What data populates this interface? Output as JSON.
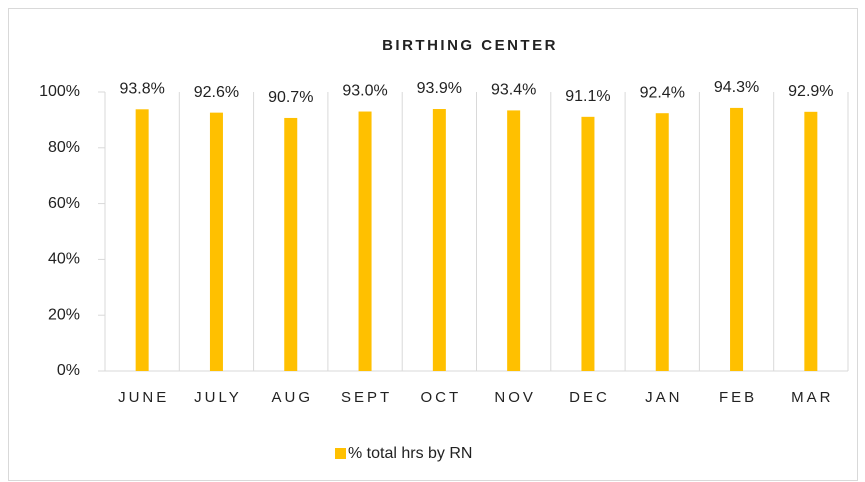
{
  "chart_data": {
    "type": "bar",
    "title": "BIRTHING CENTER",
    "categories": [
      "JUNE",
      "JULY",
      "AUG",
      "SEPT",
      "OCT",
      "NOV",
      "DEC",
      "JAN",
      "FEB",
      "MAR"
    ],
    "series": [
      {
        "name": "% total hrs by RN",
        "color": "#ffc000",
        "values": [
          93.8,
          92.6,
          90.7,
          93.0,
          93.9,
          93.4,
          91.1,
          92.4,
          94.3,
          92.9
        ],
        "value_labels": [
          "93.8%",
          "92.6%",
          "90.7%",
          "93.0%",
          "93.9%",
          "93.4%",
          "91.1%",
          "92.4%",
          "94.3%",
          "92.9%"
        ]
      }
    ],
    "ylim": [
      0,
      100
    ],
    "yticks": [
      {
        "value": 0,
        "label": "0%"
      },
      {
        "value": 20,
        "label": "20%"
      },
      {
        "value": 40,
        "label": "40%"
      },
      {
        "value": 60,
        "label": "60%"
      },
      {
        "value": 80,
        "label": "80%"
      },
      {
        "value": 100,
        "label": "100%"
      }
    ],
    "legend": "bottom"
  }
}
